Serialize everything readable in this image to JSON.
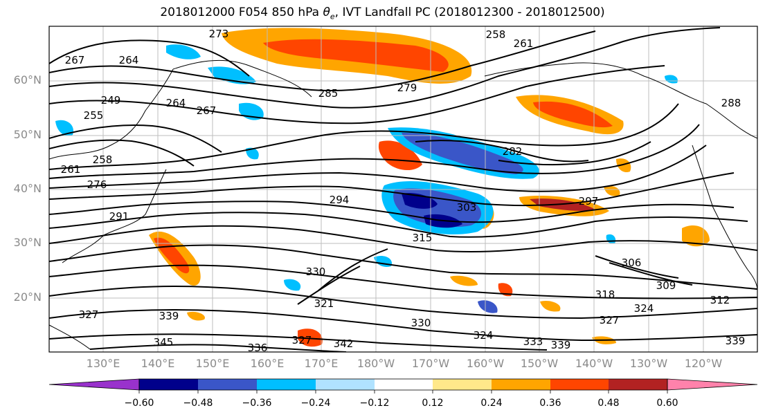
{
  "title": "2018012000 F054 850 hPa θe, IVT Landfall PC (2018012300 - 2018012500)",
  "lat_labels": [
    "60°N",
    "50°N",
    "40°N",
    "30°N",
    "20°N"
  ],
  "lon_labels": [
    "130°E",
    "140°E",
    "150°E",
    "160°E",
    "170°E",
    "180°W",
    "170°W",
    "160°W",
    "150°W",
    "140°W",
    "130°W",
    "120°W"
  ],
  "contour_labels": [
    "258",
    "261",
    "267",
    "264",
    "273",
    "249",
    "264",
    "267",
    "255",
    "285",
    "279",
    "282",
    "288",
    "261",
    "258",
    "276",
    "294",
    "303",
    "297",
    "291",
    "315",
    "306",
    "309",
    "330",
    "327",
    "321",
    "318",
    "324",
    "339",
    "345",
    "336",
    "342",
    "327",
    "330",
    "324",
    "333",
    "339",
    "339",
    "312",
    "327"
  ],
  "colorbar": {
    "ticks": [
      "−0.60",
      "−0.48",
      "−0.36",
      "−0.24",
      "−0.12",
      "0.12",
      "0.24",
      "0.36",
      "0.48",
      "0.60"
    ],
    "colors": [
      "#9932cc",
      "#00008b",
      "#3a56c8",
      "#00bfff",
      "#b0e2ff",
      "#ffffff",
      "#ffe88a",
      "#ffa500",
      "#ff4500",
      "#b22222",
      "#ff82ab"
    ]
  },
  "colors": {
    "neg_strong": "#00008b",
    "neg_mid": "#3a56c8",
    "neg_light": "#00bfff",
    "neg_pale": "#b0e2ff",
    "pos_pale": "#ffe88a",
    "pos_mid": "#ffa500",
    "pos_strong": "#ff4500",
    "pos_dark": "#b22222"
  }
}
